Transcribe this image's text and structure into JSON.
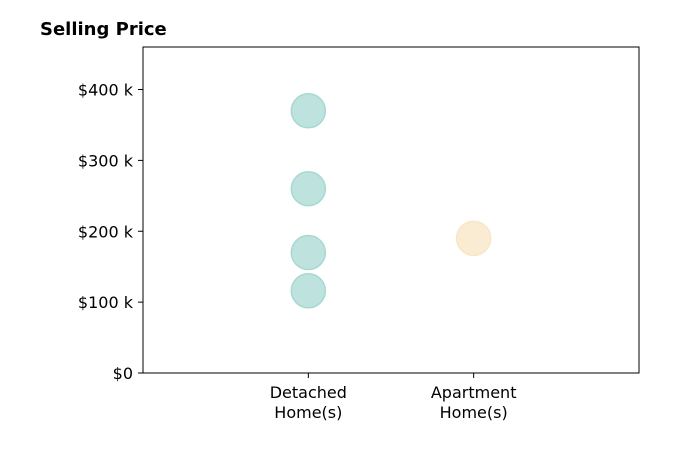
{
  "chart_data": {
    "type": "scatter",
    "title": "Selling Price",
    "xlabel": "",
    "ylabel": "",
    "categories": [
      "Detached\nHome(s)",
      "Apartment\nHome(s)"
    ],
    "y_ticks": [
      {
        "value": 0,
        "label": "$0"
      },
      {
        "value": 100000,
        "label": "$100 k"
      },
      {
        "value": 200000,
        "label": "$200 k"
      },
      {
        "value": 300000,
        "label": "$300 k"
      },
      {
        "value": 400000,
        "label": "$400 k"
      }
    ],
    "ylim": [
      0,
      460000
    ],
    "xlim": [
      0,
      3
    ],
    "grid": false,
    "legend": "none",
    "series": [
      {
        "category_index": 1,
        "color": "#a8d8d2",
        "values": [
          370000,
          260000,
          170000,
          116000
        ]
      },
      {
        "category_index": 2,
        "color": "#f8e6c4",
        "values": [
          190000
        ]
      }
    ]
  }
}
